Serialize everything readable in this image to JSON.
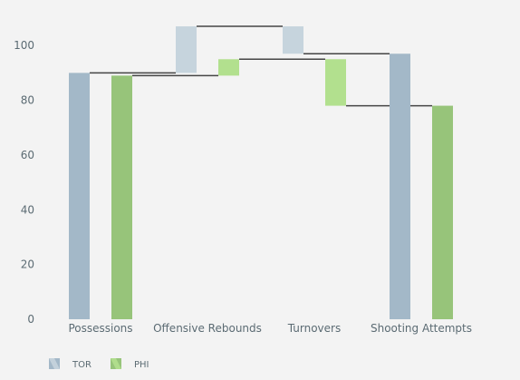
{
  "chart_data": {
    "type": "waterfall",
    "categories": [
      "Possessions",
      "Offensive Rebounds",
      "Turnovers",
      "Shooting Attempts"
    ],
    "series": [
      {
        "name": "TOR",
        "color": "#a3b8c8",
        "increase_color": "#c6d4dd",
        "measures": [
          "absolute",
          "relative",
          "relative",
          "total"
        ],
        "values": [
          90,
          17,
          -10,
          97
        ]
      },
      {
        "name": "PHI",
        "color": "#97c47a",
        "increase_color": "#b2e08e",
        "measures": [
          "absolute",
          "relative",
          "relative",
          "total"
        ],
        "values": [
          89,
          6,
          -17,
          78
        ]
      }
    ],
    "ylim": [
      0,
      110
    ],
    "yticks": [
      0,
      20,
      40,
      60,
      80,
      100
    ],
    "grid": false,
    "legend_placement": "bottom-left"
  }
}
